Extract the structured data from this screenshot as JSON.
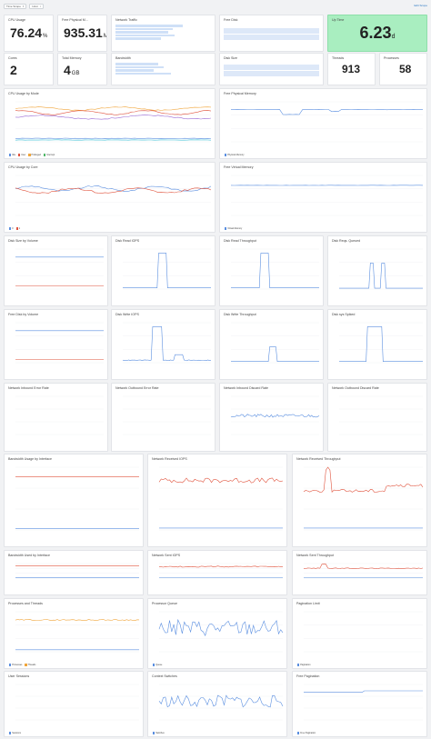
{
  "topbar": {
    "filter1": "Time Scope",
    "filter2": "Host",
    "edit_label": "Edit Scope"
  },
  "stats": {
    "cpu_usage": {
      "title": "CPU Usage",
      "value": "76.24",
      "unit": "%"
    },
    "free_physical": {
      "title": "Free Physical M...",
      "value": "935.31",
      "unit": "M"
    },
    "network_traffic": {
      "title": "Network Traffic"
    },
    "free_disk": {
      "title": "Free Disk"
    },
    "uptime": {
      "title": "Up Time",
      "value": "6.23",
      "unit": "d"
    },
    "cores": {
      "title": "Cores",
      "value": "2"
    },
    "total_memory": {
      "title": "Total Memory",
      "value": "4",
      "unit": "GB"
    },
    "bandwidth": {
      "title": "Bandwidth"
    },
    "disk_size": {
      "title": "Disk Size"
    },
    "threads": {
      "title": "Threads",
      "value": "913"
    },
    "processes": {
      "title": "Processes",
      "value": "58"
    }
  },
  "charts": {
    "cpu_mode": {
      "title": "CPU Usage by Mode",
      "legend": [
        "Idle",
        "User",
        "Privileged",
        "Interrupt"
      ]
    },
    "free_physical_memory": {
      "title": "Free Physical Memory",
      "legend": [
        "Physical Memory"
      ]
    },
    "cpu_core": {
      "title": "CPU Usage by Core",
      "legend": [
        "0",
        "1"
      ]
    },
    "free_virtual_memory": {
      "title": "Free Virtual Memory",
      "legend": [
        "Virtual Memory"
      ]
    },
    "disk_size_volume": {
      "title": "Disk Size by Volume"
    },
    "disk_read_iops": {
      "title": "Disk Read IOPS"
    },
    "disk_read_throughput": {
      "title": "Disk Read Throughput"
    },
    "disk_reqs_queued": {
      "title": "Disk Reqs. Queued"
    },
    "free_disk_volume": {
      "title": "Free Disk by Volume"
    },
    "disk_write_iops": {
      "title": "Disk Write IOPS"
    },
    "disk_write_throughput": {
      "title": "Disk Write Throughput"
    },
    "disk_sys_spikes": {
      "title": "Disk sys Spiked"
    },
    "net_in_error": {
      "title": "Network Inbound Error Rate"
    },
    "net_out_error": {
      "title": "Network Outbound Error Rate"
    },
    "net_in_discard": {
      "title": "Network Inbound Discard Rate"
    },
    "net_out_discard": {
      "title": "Network Outbound Discard Rate"
    },
    "bw_interface": {
      "title": "Bandwidth Usage by Interface"
    },
    "net_recv_iops": {
      "title": "Network Received IOPS"
    },
    "net_recv_throughput": {
      "title": "Network Received Throughput"
    },
    "bw_used_interface": {
      "title": "Bandwidth Used by Interface"
    },
    "net_sent_iops": {
      "title": "Network Sent IOPS"
    },
    "net_sent_throughput": {
      "title": "Network Sent Throughput"
    },
    "proc_threads": {
      "title": "Processes and Threads",
      "legend": [
        "Processes",
        "Threads"
      ]
    },
    "processor_queue": {
      "title": "Processor Queue",
      "legend": [
        "Queue"
      ]
    },
    "pagination_limit": {
      "title": "Pagination Limit",
      "legend": [
        "Pagination"
      ]
    },
    "user_sessions": {
      "title": "User Sessions",
      "legend": [
        "Sessions"
      ]
    },
    "context_switches": {
      "title": "Context Switches",
      "legend": [
        "Switches"
      ]
    },
    "free_pagination": {
      "title": "Free Pagination",
      "legend": [
        "Free Pagination"
      ]
    }
  },
  "colors": {
    "blue": "#5b8fe0",
    "red": "#e0533d",
    "orange": "#f0a53a",
    "green": "#52b86a",
    "cyan": "#3fc1d6",
    "purple": "#9b6cd6",
    "uptime_bg": "#a9eec0"
  }
}
